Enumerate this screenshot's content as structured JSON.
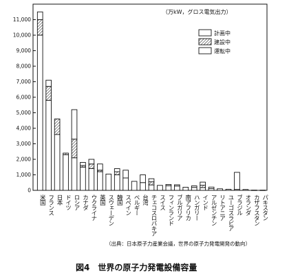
{
  "chart_data": {
    "type": "bar",
    "stacked": true,
    "title": "図4　世界の原子力発電設備容量",
    "unit_note": "（万kW，グロス電気出力）",
    "source": "（出典：日本原子力産業会議，世界の原子力発電開発の動向）",
    "ylim": [
      0,
      12000
    ],
    "yticks": [
      0,
      1000,
      2000,
      3000,
      4000,
      5000,
      6000,
      7000,
      8000,
      9000,
      10000,
      11000
    ],
    "ytick_labels": [
      "0",
      "1,000",
      "2,000",
      "3,000",
      "4,000",
      "5,000",
      "6,000",
      "7,000",
      "8,000",
      "9,000",
      "10,000",
      "11,000"
    ],
    "legend_position": "top-right",
    "categories": [
      "米国",
      "フランス",
      "日本",
      "ドイツ",
      "ロシア",
      "カナダ",
      "ウクライナ",
      "英国",
      "スウェーデン",
      "韓国",
      "スペイン",
      "ベルギー",
      "台湾",
      "チェコスロバキア",
      "スイス",
      "フィンランド",
      "ブルガリア",
      "南アフリカ",
      "ハンガリー",
      "インド",
      "アルゼンチン",
      "リトアニア",
      "ユーゴスラビア",
      "ブラジル",
      "オランダ",
      "カザフスタン",
      "パキスタン"
    ],
    "series": [
      {
        "name": "運転中",
        "pattern": "open",
        "values": [
          10000,
          5800,
          3600,
          2300,
          2100,
          1500,
          1400,
          1200,
          1050,
          1000,
          800,
          580,
          500,
          350,
          320,
          300,
          280,
          200,
          190,
          180,
          110,
          100,
          70,
          60,
          55,
          15,
          14
        ]
      },
      {
        "name": "建設中",
        "pattern": "hatched",
        "values": [
          1000,
          900,
          1000,
          100,
          1200,
          100,
          300,
          100,
          0,
          200,
          0,
          0,
          0,
          200,
          0,
          0,
          0,
          0,
          0,
          150,
          0,
          0,
          0,
          0,
          0,
          0,
          0
        ]
      },
      {
        "name": "計画中",
        "pattern": "open",
        "values": [
          500,
          400,
          0,
          0,
          1900,
          200,
          300,
          400,
          0,
          200,
          500,
          0,
          500,
          200,
          0,
          80,
          80,
          0,
          100,
          200,
          100,
          0,
          0,
          1100,
          0,
          0,
          0
        ]
      }
    ]
  }
}
